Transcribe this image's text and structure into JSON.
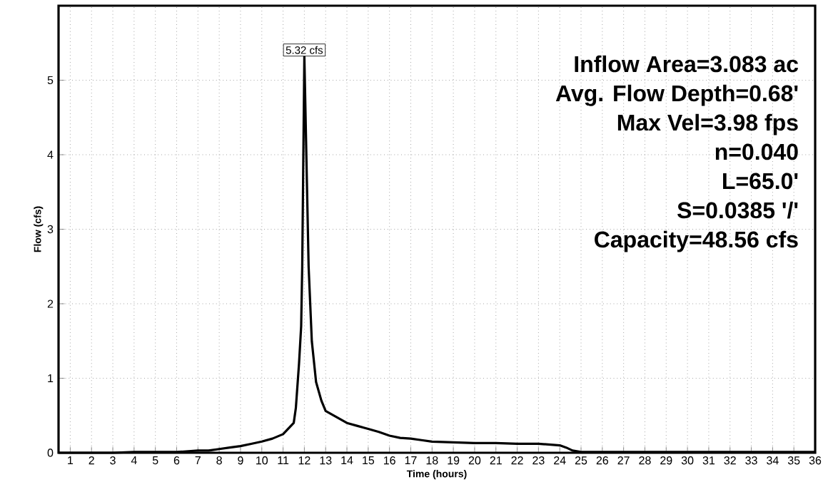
{
  "chart_data": {
    "type": "line",
    "xlabel": "Time  (hours)",
    "ylabel": "Flow  (cfs)",
    "color": "#000000",
    "x": [
      0.45,
      1,
      2,
      3,
      4,
      5,
      6,
      6.5,
      7,
      7.5,
      8,
      8.5,
      9,
      9.5,
      10,
      10.5,
      11,
      11.5,
      11.6,
      11.75,
      11.85,
      11.9,
      12.0,
      12.2,
      12.35,
      12.55,
      12.8,
      13.0,
      13.5,
      14,
      14.5,
      15,
      15.5,
      16,
      16.5,
      17,
      17.5,
      18,
      19,
      20,
      21,
      22,
      23,
      24,
      24.3,
      24.6,
      25,
      30,
      36
    ],
    "values": [
      0,
      0,
      0,
      0,
      0.01,
      0.01,
      0.01,
      0.02,
      0.03,
      0.03,
      0.05,
      0.07,
      0.09,
      0.12,
      0.15,
      0.19,
      0.25,
      0.4,
      0.6,
      1.2,
      1.7,
      2.5,
      5.32,
      2.5,
      1.5,
      0.95,
      0.7,
      0.56,
      0.48,
      0.4,
      0.36,
      0.32,
      0.28,
      0.23,
      0.2,
      0.19,
      0.17,
      0.15,
      0.14,
      0.13,
      0.13,
      0.12,
      0.12,
      0.1,
      0.07,
      0.03,
      0.01,
      0.01,
      0.01
    ],
    "xlim": [
      0.45,
      36
    ],
    "ylim": [
      0,
      6
    ],
    "xticks": [
      1,
      2,
      3,
      4,
      5,
      6,
      7,
      8,
      9,
      10,
      11,
      12,
      13,
      14,
      15,
      16,
      17,
      18,
      19,
      20,
      21,
      22,
      23,
      24,
      25,
      26,
      27,
      28,
      29,
      30,
      31,
      32,
      33,
      34,
      35,
      36
    ],
    "yticks": [
      0,
      1,
      2,
      3,
      4,
      5
    ],
    "grid": true,
    "annotations": [
      {
        "text": "5.32 cfs",
        "x": 12,
        "y": 5.32
      },
      "Inflow Area=3.083 ac",
      "Avg. Flow Depth=0.68'",
      "Max Vel=3.98 fps",
      "n=0.040",
      "L=65.0'",
      "S=0.0385 '/'",
      "Capacity=48.56 cfs"
    ]
  }
}
